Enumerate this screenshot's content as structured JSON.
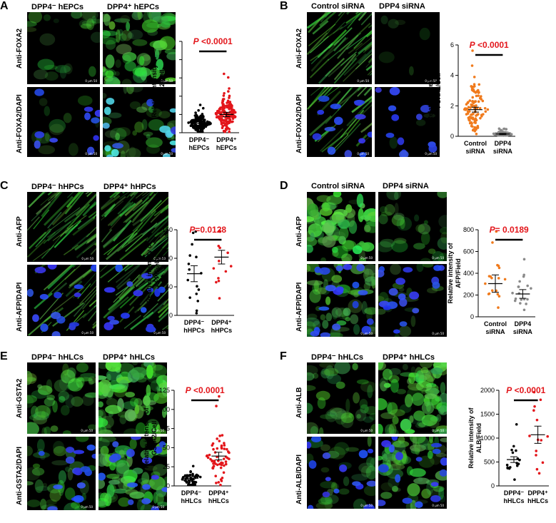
{
  "figure": {
    "panels": [
      {
        "id": "A",
        "letter": "A",
        "col_titles": [
          "DPP4⁻ hEPCs",
          "DPP4⁺ hEPCs"
        ],
        "row_labels": [
          "Anti-FOXA2",
          "Anti-FOXA2/DAPI"
        ]
      },
      {
        "id": "B",
        "letter": "B",
        "col_titles": [
          "Control siRNA",
          "DPP4 siRNA"
        ],
        "row_labels": [
          "Anti-FOXA2",
          "Anti-FOXA2/DAPI"
        ]
      },
      {
        "id": "C",
        "letter": "C",
        "col_titles": [
          "DPP4⁻ hHPCs",
          "DPP4⁺ hHPCs"
        ],
        "row_labels": [
          "Anti-AFP",
          "Anti-AFP/DAPI"
        ]
      },
      {
        "id": "D",
        "letter": "D",
        "col_titles": [
          "Control siRNA",
          "DPP4 siRNA"
        ],
        "row_labels": [
          "Anti-AFP",
          "Anti-AFP/DAPI"
        ]
      },
      {
        "id": "E",
        "letter": "E",
        "col_titles": [
          "DPP4⁻ hHLCs",
          "DPP4⁺ hHLCs"
        ],
        "row_labels": [
          "Anti-GSTA2",
          "Anti-GSTA2/DAPI"
        ]
      },
      {
        "id": "F",
        "letter": "F",
        "col_titles": [
          "DPP4⁻ hHLCs",
          "DPP4⁺ hHLCs"
        ],
        "row_labels": [
          "Anti-ALB",
          "Anti-ALB/DAPI"
        ]
      }
    ],
    "scale_bar_text": "0 µm 50"
  },
  "colors": {
    "orange": "#f07a1c",
    "grey": "#8a8a8a",
    "red": "#e3161b",
    "black": "#000000",
    "green": "#3bd23b",
    "blue": "#2b3cf0"
  },
  "chart_data": [
    {
      "id": "A",
      "type": "scatter",
      "ylabel": "Relative intensity of FOXA2/Cell",
      "ylabel_lines": [
        "Relative intensity of",
        "FOXA2/Cell"
      ],
      "categories": [
        "DPP4⁻ hEPCs",
        "DPP4⁺ hEPCs"
      ],
      "cat_lines": [
        [
          "DPP4⁻",
          "hEPCs"
        ],
        [
          "DPP4⁺",
          "hEPCs"
        ]
      ],
      "ylim": [
        0,
        1
      ],
      "ticks": [],
      "series": [
        {
          "mean": 0.1,
          "sem": 0.01,
          "n": 140,
          "color": "black"
        },
        {
          "mean": 0.2,
          "sem": 0.012,
          "n": 160,
          "color": "red"
        }
      ],
      "pvalue": "P <0.0001",
      "p_prefix": "P",
      "p_rest": " <0.0001"
    },
    {
      "id": "B",
      "type": "scatter",
      "ylabel": "Relative intensity of FOXA2/Cell",
      "ylabel_lines": [
        "Relative intensity of",
        "FOXA2/Cell"
      ],
      "categories": [
        "Control siRNA",
        "DPP4 siRNA"
      ],
      "cat_lines": [
        [
          "Control",
          "siRNA"
        ],
        [
          "DPP4",
          "siRNA"
        ]
      ],
      "ylim": [
        0,
        6
      ],
      "ticks": [
        0,
        2,
        4,
        6
      ],
      "series": [
        {
          "mean": 1.75,
          "sem": 0.08,
          "n": 110,
          "color": "orange"
        },
        {
          "mean": 0.15,
          "sem": 0.02,
          "n": 90,
          "color": "grey"
        }
      ],
      "pvalue": "P <0.0001",
      "p_prefix": "P",
      "p_rest": " <0.0001"
    },
    {
      "id": "C",
      "type": "scatter",
      "ylabel": "Relative intensity of AFP/Field",
      "ylabel_lines": [
        "Relative intensity of",
        "AFP/Field"
      ],
      "categories": [
        "DPP4⁻ hHPCs",
        "DPP4⁺ hHPCs"
      ],
      "cat_lines": [
        [
          "DPP4⁻",
          "hHPCs"
        ],
        [
          "DPP4⁺",
          "hHPCs"
        ]
      ],
      "ylim": [
        0,
        150
      ],
      "ticks": [
        0,
        50,
        100,
        150
      ],
      "series": [
        {
          "mean": 73,
          "sem": 7,
          "n": 16,
          "color": "black"
        },
        {
          "mean": 102,
          "sem": 6,
          "n": 13,
          "color": "red"
        }
      ],
      "pvalue": "P=0.0128",
      "p_prefix": "P",
      "p_rest": "=0.0128"
    },
    {
      "id": "D",
      "type": "scatter",
      "ylabel": "Relative intensity of AFP/Field",
      "ylabel_lines": [
        "Relative intensity of",
        "AFP/Field"
      ],
      "categories": [
        "Control siRNA",
        "DPP4 siRNA"
      ],
      "cat_lines": [
        [
          "Control",
          "siRNA"
        ],
        [
          "DPP4",
          "siRNA"
        ]
      ],
      "ylim": [
        0,
        800
      ],
      "ticks": [
        0,
        200,
        400,
        600,
        800
      ],
      "series": [
        {
          "mean": 305,
          "sem": 40,
          "n": 18,
          "color": "orange"
        },
        {
          "mean": 210,
          "sem": 20,
          "n": 18,
          "color": "grey"
        }
      ],
      "pvalue": "P= 0.0189",
      "p_prefix": "P",
      "p_rest": "= 0.0189"
    },
    {
      "id": "E",
      "type": "scatter",
      "ylabel": "Relative intensity of GSTA2/Cell",
      "ylabel_lines": [
        "Relative intensity of",
        "GSTA2/Cell"
      ],
      "categories": [
        "DPP4⁻ hHLCs",
        "DPP4⁺ hHLCs"
      ],
      "cat_lines": [
        [
          "DPP4⁻",
          "hHLCs"
        ],
        [
          "DPP4⁺",
          "hHLCs"
        ]
      ],
      "ylim": [
        0,
        125
      ],
      "ticks": [
        0,
        25,
        50,
        75,
        100,
        125
      ],
      "series": [
        {
          "mean": 10,
          "sem": 1,
          "n": 50,
          "color": "black"
        },
        {
          "mean": 39,
          "sem": 2.5,
          "n": 60,
          "color": "red"
        }
      ],
      "pvalue": "P <0.0001",
      "p_prefix": "P",
      "p_rest": " <0.0001"
    },
    {
      "id": "F",
      "type": "scatter",
      "ylabel": "Relative intensity of ALB/Field",
      "ylabel_lines": [
        "Relative intensity of",
        "ALB/Field"
      ],
      "categories": [
        "DPP4⁻ hHLCs",
        "DPP4⁺ hHLCs"
      ],
      "cat_lines": [
        [
          "DPP4⁻",
          "hHLCs"
        ],
        [
          "DPP4⁺",
          "hHLCs"
        ]
      ],
      "ylim": [
        0,
        2000
      ],
      "ticks": [
        0,
        500,
        1000,
        1500,
        2000
      ],
      "series": [
        {
          "mean": 550,
          "sem": 30,
          "n": 16,
          "color": "black"
        },
        {
          "mean": 1070,
          "sem": 90,
          "n": 14,
          "color": "red"
        }
      ],
      "pvalue": "P <0.0001",
      "p_prefix": "P",
      "p_rest": " <0.0001"
    }
  ]
}
